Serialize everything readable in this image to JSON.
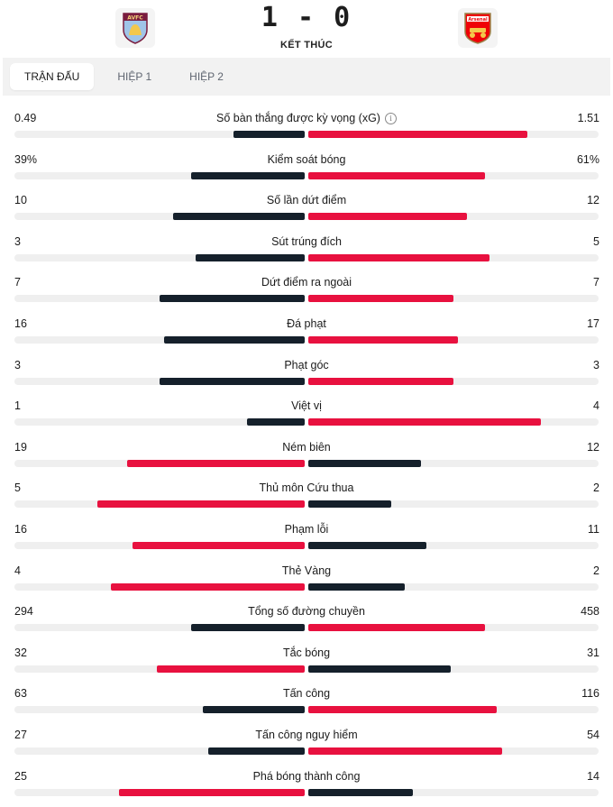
{
  "match": {
    "score": "1 - 0",
    "status": "KẾT THÚC"
  },
  "teams": {
    "home_logo_text": "AVFC",
    "away_logo_text": "Arsenal"
  },
  "colors": {
    "away_red": "#e8113f",
    "home_dark": "#15202b",
    "track": "#efefef"
  },
  "tabs": [
    {
      "label": "TRẬN ĐẤU",
      "active": true
    },
    {
      "label": "HIỆP 1",
      "active": false
    },
    {
      "label": "HIỆP 2",
      "active": false
    }
  ],
  "stats": [
    {
      "name": "Số bàn thắng được kỳ vọng (xG)",
      "home": "0.49",
      "away": "1.51",
      "home_val": 0.49,
      "away_val": 1.51,
      "info": true
    },
    {
      "name": "Kiểm soát bóng",
      "home": "39%",
      "away": "61%",
      "home_val": 39,
      "away_val": 61
    },
    {
      "name": "Số lần dứt điểm",
      "home": "10",
      "away": "12",
      "home_val": 10,
      "away_val": 12
    },
    {
      "name": "Sút trúng đích",
      "home": "3",
      "away": "5",
      "home_val": 3,
      "away_val": 5
    },
    {
      "name": "Dứt điểm ra ngoài",
      "home": "7",
      "away": "7",
      "home_val": 7,
      "away_val": 7
    },
    {
      "name": "Đá phạt",
      "home": "16",
      "away": "17",
      "home_val": 16,
      "away_val": 17
    },
    {
      "name": "Phạt góc",
      "home": "3",
      "away": "3",
      "home_val": 3,
      "away_val": 3
    },
    {
      "name": "Việt vị",
      "home": "1",
      "away": "4",
      "home_val": 1,
      "away_val": 4
    },
    {
      "name": "Ném biên",
      "home": "19",
      "away": "12",
      "home_val": 19,
      "away_val": 12
    },
    {
      "name": "Thủ môn Cứu thua",
      "home": "5",
      "away": "2",
      "home_val": 5,
      "away_val": 2
    },
    {
      "name": "Phạm lỗi",
      "home": "16",
      "away": "11",
      "home_val": 16,
      "away_val": 11
    },
    {
      "name": "Thẻ Vàng",
      "home": "4",
      "away": "2",
      "home_val": 4,
      "away_val": 2
    },
    {
      "name": "Tổng số đường chuyền",
      "home": "294",
      "away": "458",
      "home_val": 294,
      "away_val": 458
    },
    {
      "name": "Tắc bóng",
      "home": "32",
      "away": "31",
      "home_val": 32,
      "away_val": 31
    },
    {
      "name": "Tấn công",
      "home": "63",
      "away": "116",
      "home_val": 63,
      "away_val": 116
    },
    {
      "name": "Tấn công nguy hiểm",
      "home": "27",
      "away": "54",
      "home_val": 27,
      "away_val": 54
    },
    {
      "name": "Phá bóng thành công",
      "home": "25",
      "away": "14",
      "home_val": 25,
      "away_val": 14
    }
  ]
}
